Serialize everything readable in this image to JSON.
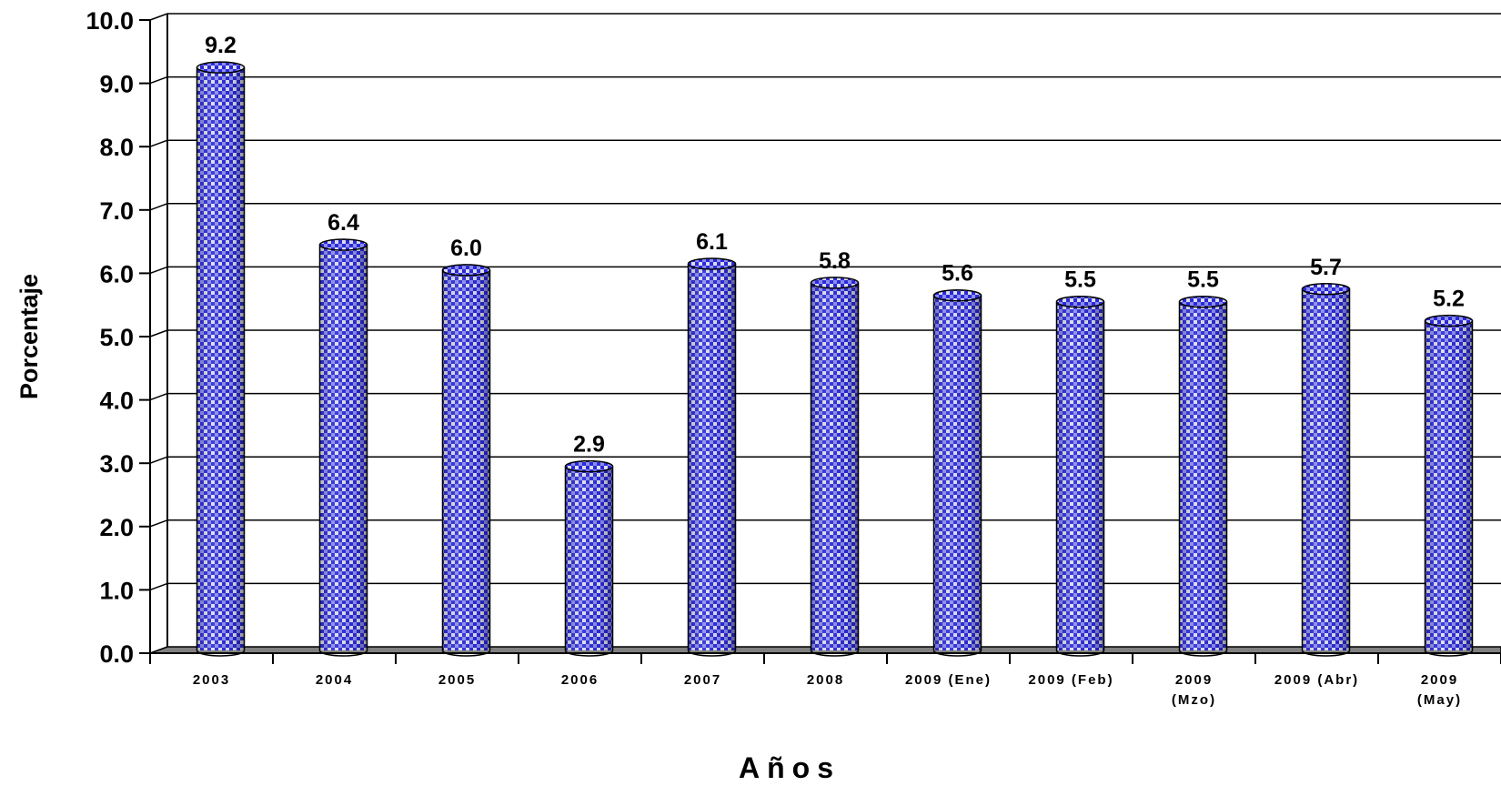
{
  "chart_data": {
    "type": "bar",
    "categories": [
      [
        "2003"
      ],
      [
        "2004"
      ],
      [
        "2005"
      ],
      [
        "2006"
      ],
      [
        "2007"
      ],
      [
        "2008"
      ],
      [
        "2009 (Ene)"
      ],
      [
        "2009 (Feb)"
      ],
      [
        "2009",
        "(Mzo)"
      ],
      [
        "2009 (Abr)"
      ],
      [
        "2009",
        "(May)"
      ]
    ],
    "values": [
      9.2,
      6.4,
      6.0,
      2.9,
      6.1,
      5.8,
      5.6,
      5.5,
      5.5,
      5.7,
      5.2
    ],
    "value_labels": [
      "9.2",
      "6.4",
      "6.0",
      "2.9",
      "6.1",
      "5.8",
      "5.6",
      "5.5",
      "5.5",
      "5.7",
      "5.2"
    ],
    "xlabel": "Años",
    "ylabel": "Porcentaje",
    "ylim": [
      0,
      10
    ],
    "yticks": [
      "0.0",
      "1.0",
      "2.0",
      "3.0",
      "4.0",
      "5.0",
      "6.0",
      "7.0",
      "8.0",
      "9.0",
      "10.0"
    ],
    "grid": true,
    "bar_style": "3d-cylinder",
    "colors": {
      "bar": "#2a2ad8",
      "bar_light": "#d8d8e8",
      "floor": "#808080",
      "gridline": "#000000"
    }
  }
}
